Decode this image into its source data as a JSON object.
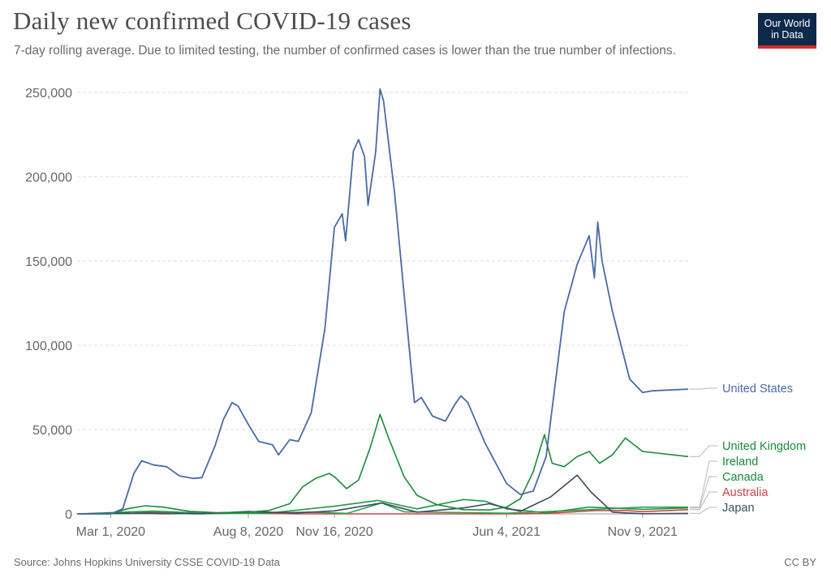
{
  "header": {
    "title": "Daily new confirmed COVID-19 cases",
    "subtitle": "7-day rolling average. Due to limited testing, the number of confirmed cases is lower than the true number of infections.",
    "logo_line1": "Our World",
    "logo_line2": "in Data"
  },
  "footer": {
    "source": "Source: Johns Hopkins University CSSE COVID-19 Data",
    "license": "CC BY"
  },
  "colors": {
    "United States": "#4a6aa5",
    "United Kingdom": "#1a8a3c",
    "Ireland": "#2aa050",
    "Canada": "#1f9a45",
    "Australia": "#d8404a",
    "Japan": "#3b4a5e"
  },
  "chart_data": {
    "type": "line",
    "title": "Daily new confirmed COVID-19 cases",
    "ylim": [
      0,
      250000
    ],
    "xlim": [
      "2020-01-22",
      "2022-01-01"
    ],
    "x_ticks": [
      {
        "date": "2020-03-01",
        "label": "Mar 1, 2020"
      },
      {
        "date": "2020-08-08",
        "label": "Aug 8, 2020"
      },
      {
        "date": "2020-11-16",
        "label": "Nov 16, 2020"
      },
      {
        "date": "2021-06-04",
        "label": "Jun 4, 2021"
      },
      {
        "date": "2021-11-09",
        "label": "Nov 9, 2021"
      }
    ],
    "y_ticks": [
      {
        "value": 0,
        "label": "0"
      },
      {
        "value": 50000,
        "label": "50,000"
      },
      {
        "value": 100000,
        "label": "100,000"
      },
      {
        "value": 150000,
        "label": "150,000"
      },
      {
        "value": 200000,
        "label": "200,000"
      },
      {
        "value": 250000,
        "label": "250,000"
      }
    ],
    "grid": true,
    "legend": "right, end-of-line labels",
    "series": [
      {
        "name": "United States",
        "points": [
          [
            "2020-01-22",
            0
          ],
          [
            "2020-03-01",
            0
          ],
          [
            "2020-03-15",
            3000
          ],
          [
            "2020-03-28",
            24000
          ],
          [
            "2020-04-06",
            31500
          ],
          [
            "2020-04-20",
            29000
          ],
          [
            "2020-05-05",
            28000
          ],
          [
            "2020-05-20",
            22500
          ],
          [
            "2020-06-05",
            21000
          ],
          [
            "2020-06-15",
            21500
          ],
          [
            "2020-06-30",
            40000
          ],
          [
            "2020-07-10",
            56000
          ],
          [
            "2020-07-20",
            66000
          ],
          [
            "2020-07-27",
            64000
          ],
          [
            "2020-08-08",
            53000
          ],
          [
            "2020-08-20",
            43000
          ],
          [
            "2020-09-05",
            41000
          ],
          [
            "2020-09-12",
            35000
          ],
          [
            "2020-09-25",
            44000
          ],
          [
            "2020-10-05",
            43000
          ],
          [
            "2020-10-20",
            60000
          ],
          [
            "2020-11-05",
            110000
          ],
          [
            "2020-11-16",
            170000
          ],
          [
            "2020-11-25",
            178000
          ],
          [
            "2020-11-29",
            162000
          ],
          [
            "2020-12-08",
            215000
          ],
          [
            "2020-12-14",
            222000
          ],
          [
            "2020-12-21",
            212000
          ],
          [
            "2020-12-25",
            183000
          ],
          [
            "2021-01-03",
            215000
          ],
          [
            "2021-01-08",
            252000
          ],
          [
            "2021-01-12",
            245000
          ],
          [
            "2021-01-25",
            190000
          ],
          [
            "2021-02-05",
            130000
          ],
          [
            "2021-02-17",
            66000
          ],
          [
            "2021-02-25",
            69000
          ],
          [
            "2021-03-10",
            58000
          ],
          [
            "2021-03-25",
            55000
          ],
          [
            "2021-04-05",
            65000
          ],
          [
            "2021-04-12",
            70000
          ],
          [
            "2021-04-20",
            66000
          ],
          [
            "2021-05-10",
            42000
          ],
          [
            "2021-06-04",
            18000
          ],
          [
            "2021-06-20",
            11500
          ],
          [
            "2021-07-05",
            13500
          ],
          [
            "2021-07-20",
            34000
          ],
          [
            "2021-08-10",
            120000
          ],
          [
            "2021-08-25",
            148000
          ],
          [
            "2021-09-08",
            165000
          ],
          [
            "2021-09-14",
            140000
          ],
          [
            "2021-09-18",
            173000
          ],
          [
            "2021-09-23",
            150000
          ],
          [
            "2021-10-05",
            120000
          ],
          [
            "2021-10-25",
            80000
          ],
          [
            "2021-11-09",
            72000
          ],
          [
            "2021-11-20",
            73000
          ],
          [
            "2022-01-01",
            74000
          ]
        ]
      },
      {
        "name": "United Kingdom",
        "points": [
          [
            "2020-01-22",
            0
          ],
          [
            "2020-03-01",
            0
          ],
          [
            "2020-03-20",
            3000
          ],
          [
            "2020-04-10",
            4800
          ],
          [
            "2020-05-01",
            4000
          ],
          [
            "2020-06-01",
            1500
          ],
          [
            "2020-07-01",
            700
          ],
          [
            "2020-08-08",
            1000
          ],
          [
            "2020-09-01",
            2000
          ],
          [
            "2020-09-25",
            6000
          ],
          [
            "2020-10-10",
            16000
          ],
          [
            "2020-10-25",
            21000
          ],
          [
            "2020-11-10",
            24000
          ],
          [
            "2020-11-16",
            22000
          ],
          [
            "2020-11-30",
            15000
          ],
          [
            "2020-12-14",
            20000
          ],
          [
            "2020-12-28",
            40000
          ],
          [
            "2021-01-08",
            59000
          ],
          [
            "2021-01-18",
            45000
          ],
          [
            "2021-02-05",
            22000
          ],
          [
            "2021-02-20",
            11000
          ],
          [
            "2021-03-15",
            5500
          ],
          [
            "2021-04-15",
            2500
          ],
          [
            "2021-05-15",
            2300
          ],
          [
            "2021-06-04",
            4000
          ],
          [
            "2021-06-20",
            9000
          ],
          [
            "2021-07-05",
            25000
          ],
          [
            "2021-07-18",
            47000
          ],
          [
            "2021-07-27",
            30000
          ],
          [
            "2021-08-10",
            28000
          ],
          [
            "2021-08-25",
            34000
          ],
          [
            "2021-09-08",
            37000
          ],
          [
            "2021-09-20",
            30000
          ],
          [
            "2021-10-05",
            35000
          ],
          [
            "2021-10-20",
            45000
          ],
          [
            "2021-11-09",
            37000
          ],
          [
            "2022-01-01",
            34000
          ]
        ]
      },
      {
        "name": "Ireland",
        "points": [
          [
            "2020-01-22",
            0
          ],
          [
            "2020-03-20",
            200
          ],
          [
            "2020-04-15",
            900
          ],
          [
            "2020-06-01",
            100
          ],
          [
            "2020-10-20",
            1000
          ],
          [
            "2020-12-01",
            300
          ],
          [
            "2021-01-10",
            6500
          ],
          [
            "2021-02-05",
            1200
          ],
          [
            "2021-06-04",
            400
          ],
          [
            "2021-08-10",
            1800
          ],
          [
            "2021-11-09",
            4000
          ],
          [
            "2022-01-01",
            4000
          ]
        ]
      },
      {
        "name": "Canada",
        "points": [
          [
            "2020-01-22",
            0
          ],
          [
            "2020-04-20",
            1700
          ],
          [
            "2020-06-15",
            400
          ],
          [
            "2020-09-01",
            500
          ],
          [
            "2020-11-16",
            4500
          ],
          [
            "2021-01-05",
            8000
          ],
          [
            "2021-02-20",
            3000
          ],
          [
            "2021-04-15",
            8500
          ],
          [
            "2021-05-10",
            7500
          ],
          [
            "2021-06-04",
            3000
          ],
          [
            "2021-07-20",
            600
          ],
          [
            "2021-09-08",
            4000
          ],
          [
            "2021-11-09",
            2700
          ],
          [
            "2022-01-01",
            3500
          ]
        ]
      },
      {
        "name": "Australia",
        "points": [
          [
            "2020-01-22",
            0
          ],
          [
            "2020-03-25",
            350
          ],
          [
            "2020-05-01",
            20
          ],
          [
            "2020-08-05",
            600
          ],
          [
            "2020-10-01",
            20
          ],
          [
            "2021-06-04",
            20
          ],
          [
            "2021-07-20",
            200
          ],
          [
            "2021-09-15",
            1900
          ],
          [
            "2021-10-20",
            2000
          ],
          [
            "2021-11-09",
            1300
          ],
          [
            "2022-01-01",
            2500
          ]
        ]
      },
      {
        "name": "Japan",
        "points": [
          [
            "2020-01-22",
            0
          ],
          [
            "2020-04-15",
            500
          ],
          [
            "2020-06-15",
            50
          ],
          [
            "2020-08-08",
            1400
          ],
          [
            "2020-10-01",
            500
          ],
          [
            "2020-11-16",
            1800
          ],
          [
            "2021-01-10",
            6500
          ],
          [
            "2021-02-20",
            1000
          ],
          [
            "2021-04-15",
            3500
          ],
          [
            "2021-05-15",
            6000
          ],
          [
            "2021-06-20",
            1500
          ],
          [
            "2021-07-25",
            10000
          ],
          [
            "2021-08-25",
            23000
          ],
          [
            "2021-09-10",
            13000
          ],
          [
            "2021-10-05",
            1000
          ],
          [
            "2021-11-09",
            100
          ],
          [
            "2022-01-01",
            300
          ]
        ]
      }
    ]
  }
}
